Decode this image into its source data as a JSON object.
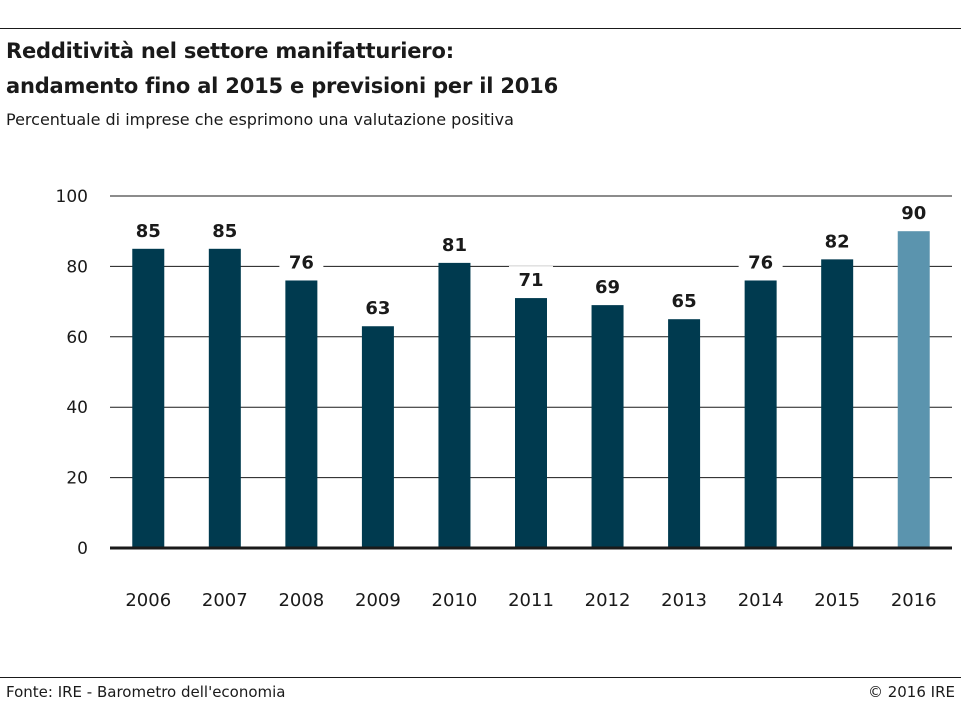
{
  "header": {
    "title_line1": "Redditività nel settore manifatturiero:",
    "title_line2": "andamento fino al 2015 e previsioni per il 2016",
    "subtitle": "Percentuale di imprese che esprimono una valutazione positiva"
  },
  "footer": {
    "source": "Fonte: IRE - Barometro dell'economia",
    "copyright": "© 2016 IRE"
  },
  "chart_data": {
    "type": "bar",
    "title": "Redditività nel settore manifatturiero: andamento fino al 2015 e previsioni per il 2016",
    "subtitle": "Percentuale di imprese che esprimono una valutazione positiva",
    "categories": [
      "2006",
      "2007",
      "2008",
      "2009",
      "2010",
      "2011",
      "2012",
      "2013",
      "2014",
      "2015",
      "2016"
    ],
    "values": [
      85,
      85,
      76,
      63,
      81,
      71,
      69,
      65,
      76,
      82,
      90
    ],
    "data_labels": [
      "85",
      "85",
      "76",
      "63",
      "81",
      "71",
      "69",
      "65",
      "76",
      "82",
      "90"
    ],
    "xlabel": "",
    "ylabel": "",
    "ylim": [
      0,
      100
    ],
    "yticks": [
      0,
      20,
      40,
      60,
      80,
      100
    ],
    "ytick_labels": [
      "0",
      "20",
      "40",
      "60",
      "80",
      "100"
    ],
    "grid": true,
    "legend": "none",
    "colors": {
      "actual": "#003a4f",
      "forecast": "#5b94ae"
    },
    "forecast_categories": [
      "2016"
    ]
  }
}
